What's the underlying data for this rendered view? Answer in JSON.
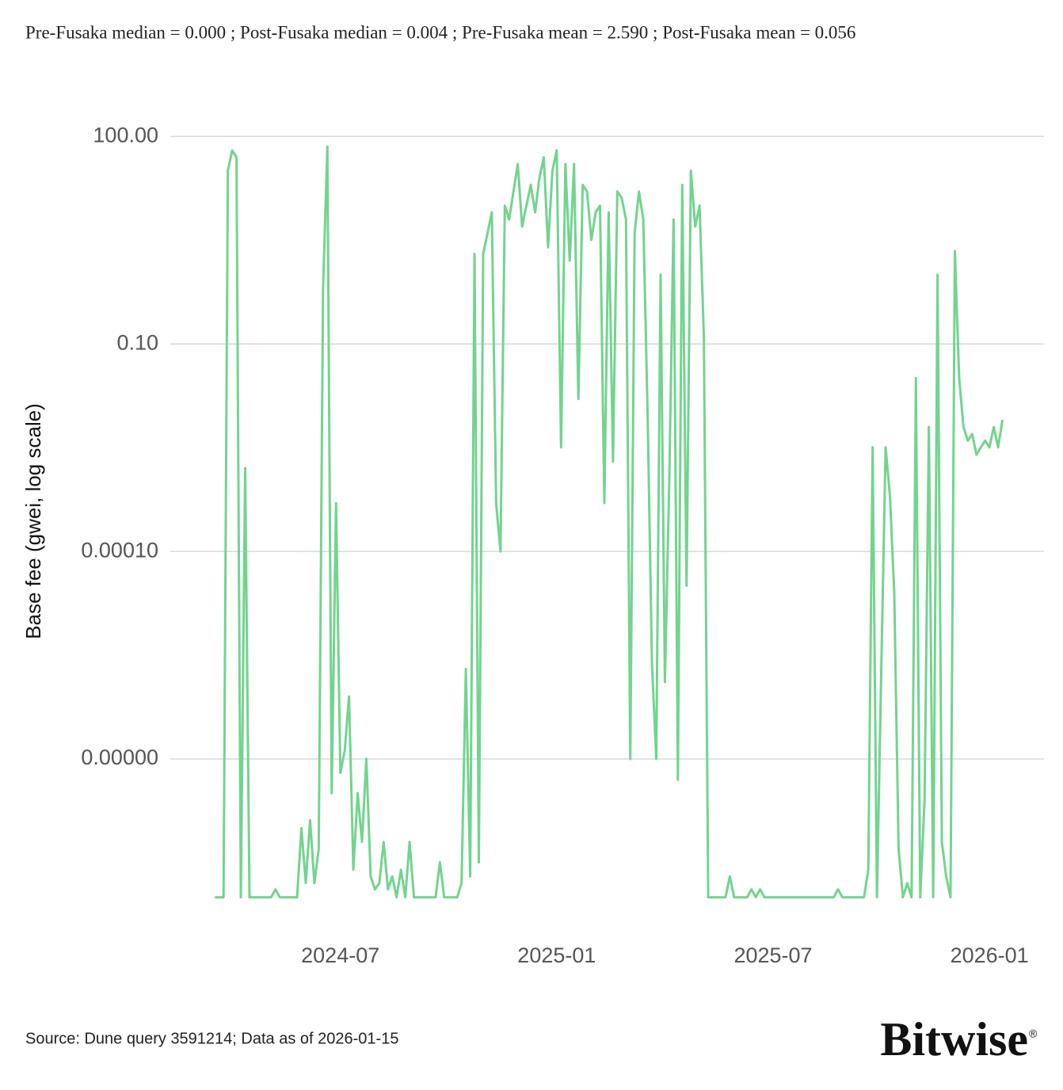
{
  "chart_data": {
    "type": "line",
    "title": "Pre-Fusaka median = 0.000 ; Post-Fusaka median = 0.004 ; Pre-Fusaka mean = 2.590 ; Post-Fusaka mean = 0.056",
    "ylabel": "Base fee (gwei, log scale)",
    "source": "Source: Dune query 3591214; Data as of 2026-01-15",
    "logo": "Bitwise",
    "logo_mark": "®",
    "log_scale": true,
    "grid": true,
    "color": "#72d48e",
    "ylim": [
      1e-10,
      1000
    ],
    "yticks": [
      {
        "value": 100,
        "label": "100.00"
      },
      {
        "value": 0.1,
        "label": "0.10"
      },
      {
        "value": 0.0001,
        "label": "0.00010"
      },
      {
        "value": 1e-07,
        "label": "0.00000"
      }
    ],
    "xlim": [
      2024.107,
      2026.126
    ],
    "xticks": [
      {
        "value": 2024.5,
        "label": "2024-07"
      },
      {
        "value": 2025.0,
        "label": "2025-01"
      },
      {
        "value": 2025.5,
        "label": "2025-07"
      },
      {
        "value": 2026.0,
        "label": "2026-01"
      }
    ],
    "x": [
      2024.21,
      2024.22,
      2024.23,
      2024.24,
      2024.25,
      2024.26,
      2024.27,
      2024.28,
      2024.29,
      2024.3,
      2024.31,
      2024.32,
      2024.33,
      2024.34,
      2024.35,
      2024.36,
      2024.37,
      2024.38,
      2024.39,
      2024.4,
      2024.41,
      2024.42,
      2024.43,
      2024.44,
      2024.45,
      2024.46,
      2024.47,
      2024.48,
      2024.49,
      2024.5,
      2024.51,
      2024.52,
      2024.53,
      2024.54,
      2024.55,
      2024.56,
      2024.57,
      2024.58,
      2024.59,
      2024.6,
      2024.61,
      2024.62,
      2024.63,
      2024.64,
      2024.65,
      2024.66,
      2024.67,
      2024.68,
      2024.69,
      2024.7,
      2024.71,
      2024.72,
      2024.73,
      2024.74,
      2024.75,
      2024.76,
      2024.77,
      2024.78,
      2024.79,
      2024.8,
      2024.81,
      2024.82,
      2024.83,
      2024.84,
      2024.85,
      2024.86,
      2024.87,
      2024.88,
      2024.89,
      2024.9,
      2024.91,
      2024.92,
      2024.93,
      2024.94,
      2024.95,
      2024.96,
      2024.97,
      2024.98,
      2024.99,
      2025.0,
      2025.01,
      2025.02,
      2025.03,
      2025.04,
      2025.05,
      2025.06,
      2025.07,
      2025.08,
      2025.09,
      2025.1,
      2025.11,
      2025.12,
      2025.13,
      2025.14,
      2025.15,
      2025.16,
      2025.17,
      2025.18,
      2025.19,
      2025.2,
      2025.21,
      2025.22,
      2025.23,
      2025.24,
      2025.25,
      2025.26,
      2025.27,
      2025.28,
      2025.29,
      2025.3,
      2025.31,
      2025.32,
      2025.33,
      2025.34,
      2025.35,
      2025.36,
      2025.37,
      2025.38,
      2025.39,
      2025.4,
      2025.41,
      2025.42,
      2025.43,
      2025.44,
      2025.45,
      2025.46,
      2025.47,
      2025.48,
      2025.49,
      2025.5,
      2025.51,
      2025.52,
      2025.53,
      2025.54,
      2025.55,
      2025.56,
      2025.57,
      2025.58,
      2025.59,
      2025.6,
      2025.61,
      2025.62,
      2025.63,
      2025.64,
      2025.65,
      2025.66,
      2025.67,
      2025.68,
      2025.69,
      2025.7,
      2025.71,
      2025.72,
      2025.73,
      2025.74,
      2025.75,
      2025.76,
      2025.77,
      2025.78,
      2025.79,
      2025.8,
      2025.81,
      2025.82,
      2025.83,
      2025.84,
      2025.85,
      2025.86,
      2025.87,
      2025.88,
      2025.89,
      2025.9,
      2025.91,
      2025.92,
      2025.93,
      2025.94,
      2025.95,
      2025.96,
      2025.97,
      2025.98,
      2025.99,
      2026.0,
      2026.01,
      2026.02,
      2026.03
    ],
    "values": [
      1e-09,
      1e-09,
      1e-09,
      32,
      63,
      50,
      1e-09,
      0.0016,
      1e-09,
      1e-09,
      1e-09,
      1e-09,
      1e-09,
      1e-09,
      1.3e-09,
      1e-09,
      1e-09,
      1e-09,
      1e-09,
      1e-09,
      1e-08,
      1.6e-09,
      1.3e-08,
      1.6e-09,
      5e-09,
      0.63,
      71,
      3.2e-08,
      0.0005,
      6.3e-08,
      1.3e-07,
      8e-07,
      2.5e-09,
      3.2e-08,
      6.3e-09,
      1e-07,
      2e-09,
      1.3e-09,
      1.6e-09,
      6.3e-09,
      1.3e-09,
      2e-09,
      1e-09,
      2.5e-09,
      1e-09,
      6.3e-09,
      1e-09,
      1e-09,
      1e-09,
      1e-09,
      1e-09,
      1e-09,
      3.2e-09,
      1e-09,
      1e-09,
      1e-09,
      1e-09,
      1.6e-09,
      2e-06,
      2e-09,
      2,
      3.2e-09,
      2,
      4,
      8,
      0.0005,
      0.0001,
      10,
      6.3,
      16,
      40,
      5,
      10,
      20,
      8,
      25,
      50,
      2.5,
      32,
      63,
      0.0032,
      40,
      1.6,
      40,
      0.016,
      20,
      16,
      3.2,
      8,
      10,
      0.0005,
      8,
      0.002,
      16,
      13,
      6.3,
      1e-07,
      4,
      16,
      6.3,
      0.01,
      2.5e-06,
      1e-07,
      1,
      1.3e-06,
      0.001,
      6.3,
      5e-08,
      20,
      3.2e-05,
      32,
      5,
      10,
      0.13,
      1e-09,
      1e-09,
      1e-09,
      1e-09,
      1e-09,
      2e-09,
      1e-09,
      1e-09,
      1e-09,
      1e-09,
      1.3e-09,
      1e-09,
      1.3e-09,
      1e-09,
      1e-09,
      1e-09,
      1e-09,
      1e-09,
      1e-09,
      1e-09,
      1e-09,
      1e-09,
      1e-09,
      1e-09,
      1e-09,
      1e-09,
      1e-09,
      1e-09,
      1e-09,
      1e-09,
      1.3e-09,
      1e-09,
      1e-09,
      1e-09,
      1e-09,
      1e-09,
      1e-09,
      2.5e-09,
      0.0032,
      1e-09,
      2e-06,
      0.0032,
      0.00063,
      2.5e-05,
      5e-09,
      1e-09,
      1.6e-09,
      1e-09,
      0.032,
      1e-09,
      2.5e-08,
      0.0063,
      1e-09,
      1,
      6.3e-09,
      2e-09,
      1e-09,
      2.2,
      0.032,
      0.0063,
      0.004,
      0.005,
      0.0025,
      0.0032,
      0.004,
      0.0032,
      0.0063,
      0.0032,
      0.008
    ]
  }
}
